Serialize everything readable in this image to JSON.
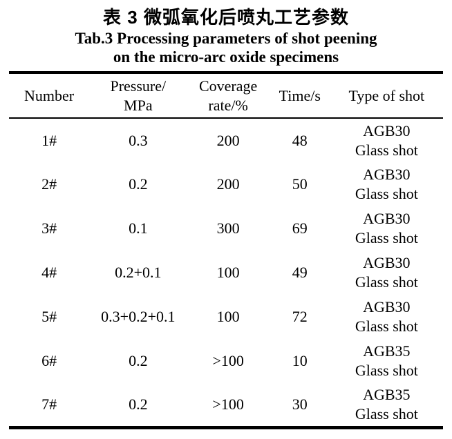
{
  "caption": {
    "title_cn": "表 3 微弧氧化后喷丸工艺参数",
    "title_en_line1": "Tab.3 Processing parameters of shot peening",
    "title_en_line2": "on the micro-arc oxide specimens"
  },
  "table": {
    "headers": {
      "number": "Number",
      "pressure_line1": "Pressure/",
      "pressure_line2": "MPa",
      "coverage_line1": "Coverage",
      "coverage_line2": "rate/%",
      "time": "Time/s",
      "type": "Type of shot"
    },
    "rows": [
      {
        "number": "1#",
        "pressure": "0.3",
        "coverage": "200",
        "time": "48",
        "shot_type": "AGB30",
        "shot_material": "Glass shot"
      },
      {
        "number": "2#",
        "pressure": "0.2",
        "coverage": "200",
        "time": "50",
        "shot_type": "AGB30",
        "shot_material": "Glass shot"
      },
      {
        "number": "3#",
        "pressure": "0.1",
        "coverage": "300",
        "time": "69",
        "shot_type": "AGB30",
        "shot_material": "Glass shot"
      },
      {
        "number": "4#",
        "pressure": "0.2+0.1",
        "coverage": "100",
        "time": "49",
        "shot_type": "AGB30",
        "shot_material": "Glass shot"
      },
      {
        "number": "5#",
        "pressure": "0.3+0.2+0.1",
        "coverage": "100",
        "time": "72",
        "shot_type": "AGB30",
        "shot_material": "Glass shot"
      },
      {
        "number": "6#",
        "pressure": "0.2",
        "coverage": ">100",
        "time": "10",
        "shot_type": "AGB35",
        "shot_material": "Glass shot"
      },
      {
        "number": "7#",
        "pressure": "0.2",
        "coverage": ">100",
        "time": "30",
        "shot_type": "AGB35",
        "shot_material": "Glass shot"
      }
    ]
  }
}
